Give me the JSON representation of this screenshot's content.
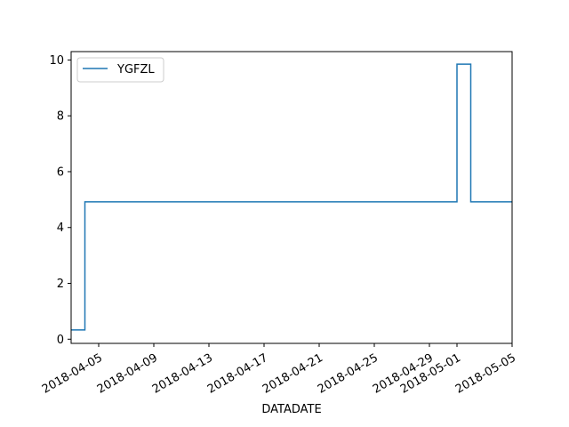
{
  "chart_data": {
    "type": "line",
    "title": "",
    "xlabel": "DATADATE",
    "ylabel": "",
    "legend": {
      "placement": "upper-left"
    },
    "grid": false,
    "x_ticks": [
      "2018-04-05",
      "2018-04-09",
      "2018-04-13",
      "2018-04-17",
      "2018-04-21",
      "2018-04-25",
      "2018-04-29",
      "2018-05-01",
      "2018-05-05"
    ],
    "y_ticks": [
      0,
      2,
      4,
      6,
      8,
      10
    ],
    "xlim": [
      "2018-04-03",
      "2018-05-05"
    ],
    "ylim": [
      -0.15,
      10.3
    ],
    "series": [
      {
        "name": "YGFZL",
        "color": "#1f77b4",
        "drawstyle": "steps-post",
        "points": [
          [
            "2018-04-03",
            0.33
          ],
          [
            "2018-04-04",
            4.92
          ],
          [
            "2018-05-01",
            9.85
          ],
          [
            "2018-05-02",
            4.92
          ],
          [
            "2018-05-05",
            4.92
          ]
        ]
      }
    ]
  }
}
